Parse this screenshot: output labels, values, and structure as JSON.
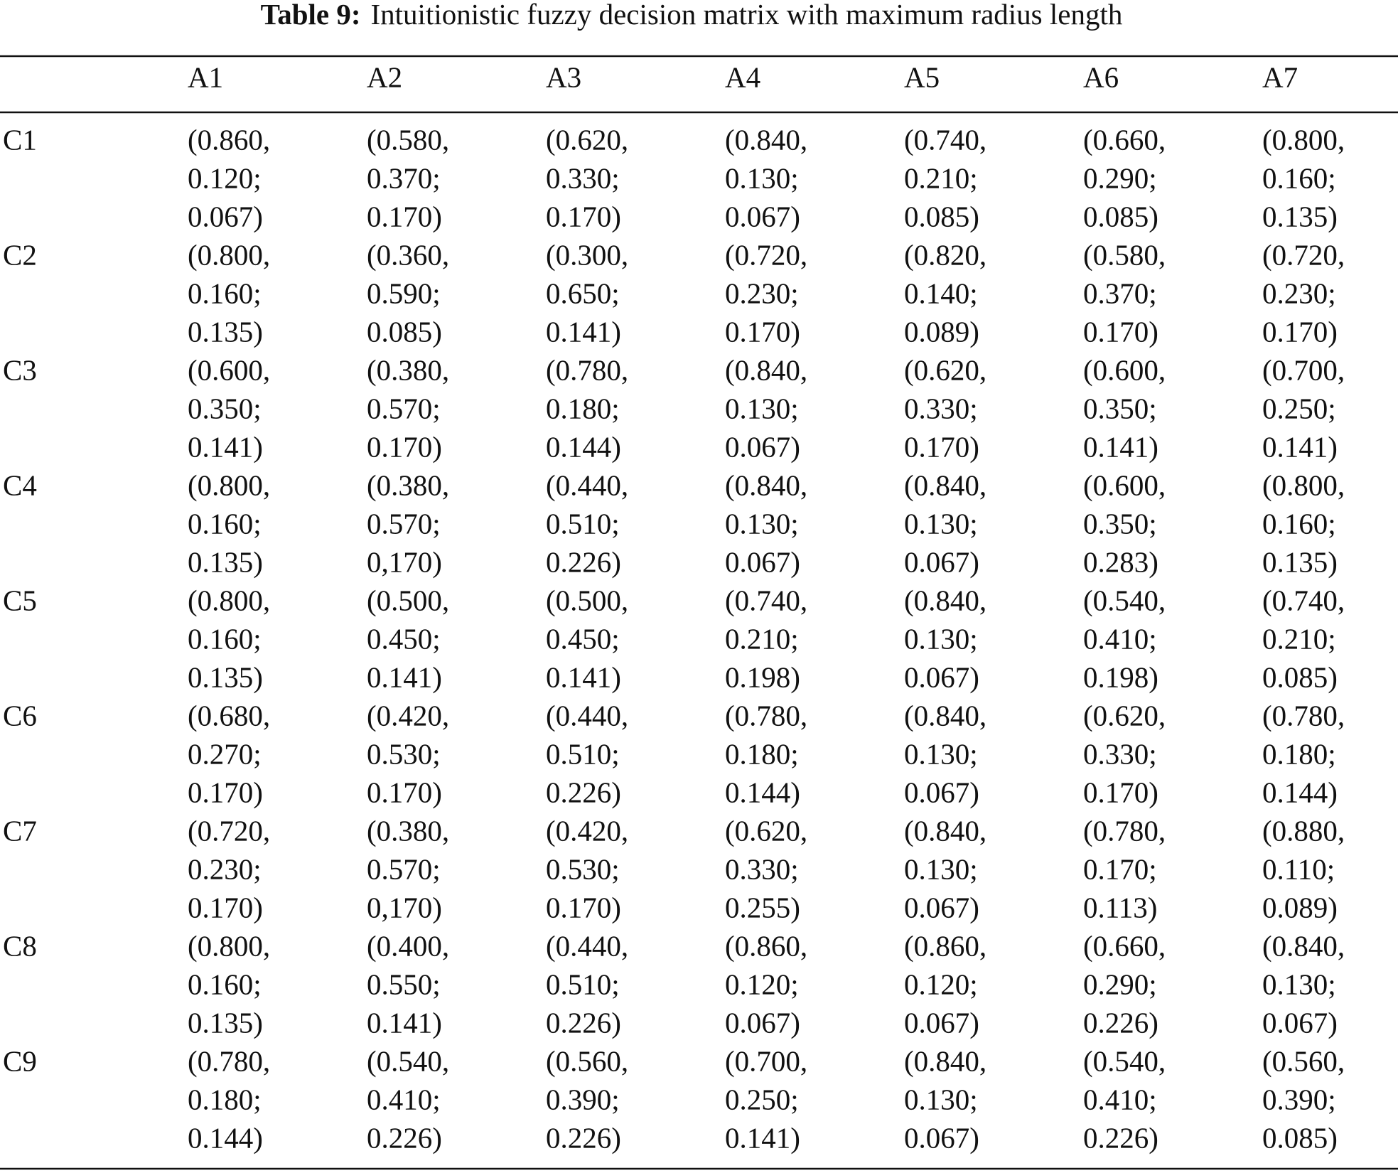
{
  "title": {
    "label": "Table 9:",
    "text": "Intuitionistic fuzzy decision matrix with maximum radius length"
  },
  "table": {
    "columns": [
      "A1",
      "A2",
      "A3",
      "A4",
      "A5",
      "A6",
      "A7"
    ],
    "rows": [
      {
        "label": "C1",
        "cells": [
          [
            "(0.860,",
            "0.120;",
            "0.067)"
          ],
          [
            "(0.580,",
            "0.370;",
            "0.170)"
          ],
          [
            "(0.620,",
            "0.330;",
            "0.170)"
          ],
          [
            "(0.840,",
            "0.130;",
            "0.067)"
          ],
          [
            "(0.740,",
            "0.210;",
            "0.085)"
          ],
          [
            "(0.660,",
            "0.290;",
            "0.085)"
          ],
          [
            "(0.800,",
            "0.160;",
            "0.135)"
          ]
        ]
      },
      {
        "label": "C2",
        "cells": [
          [
            "(0.800,",
            "0.160;",
            "0.135)"
          ],
          [
            "(0.360,",
            "0.590;",
            "0.085)"
          ],
          [
            "(0.300,",
            "0.650;",
            "0.141)"
          ],
          [
            "(0.720,",
            "0.230;",
            "0.170)"
          ],
          [
            "(0.820,",
            "0.140;",
            "0.089)"
          ],
          [
            "(0.580,",
            "0.370;",
            "0.170)"
          ],
          [
            "(0.720,",
            "0.230;",
            "0.170)"
          ]
        ]
      },
      {
        "label": "C3",
        "cells": [
          [
            "(0.600,",
            "0.350;",
            "0.141)"
          ],
          [
            "(0.380,",
            "0.570;",
            "0.170)"
          ],
          [
            "(0.780,",
            "0.180;",
            "0.144)"
          ],
          [
            "(0.840,",
            "0.130;",
            "0.067)"
          ],
          [
            "(0.620,",
            "0.330;",
            "0.170)"
          ],
          [
            "(0.600,",
            "0.350;",
            "0.141)"
          ],
          [
            "(0.700,",
            "0.250;",
            "0.141)"
          ]
        ]
      },
      {
        "label": "C4",
        "cells": [
          [
            "(0.800,",
            "0.160;",
            "0.135)"
          ],
          [
            "(0.380,",
            "0.570;",
            "0,170)"
          ],
          [
            "(0.440,",
            "0.510;",
            "0.226)"
          ],
          [
            "(0.840,",
            "0.130;",
            "0.067)"
          ],
          [
            "(0.840,",
            "0.130;",
            "0.067)"
          ],
          [
            "(0.600,",
            "0.350;",
            "0.283)"
          ],
          [
            "(0.800,",
            "0.160;",
            "0.135)"
          ]
        ]
      },
      {
        "label": "C5",
        "cells": [
          [
            "(0.800,",
            "0.160;",
            "0.135)"
          ],
          [
            "(0.500,",
            "0.450;",
            "0.141)"
          ],
          [
            "(0.500,",
            "0.450;",
            "0.141)"
          ],
          [
            "(0.740,",
            "0.210;",
            "0.198)"
          ],
          [
            "(0.840,",
            "0.130;",
            "0.067)"
          ],
          [
            "(0.540,",
            "0.410;",
            "0.198)"
          ],
          [
            "(0.740,",
            "0.210;",
            "0.085)"
          ]
        ]
      },
      {
        "label": "C6",
        "cells": [
          [
            "(0.680,",
            "0.270;",
            "0.170)"
          ],
          [
            "(0.420,",
            "0.530;",
            "0.170)"
          ],
          [
            "(0.440,",
            "0.510;",
            "0.226)"
          ],
          [
            "(0.780,",
            "0.180;",
            "0.144)"
          ],
          [
            "(0.840,",
            "0.130;",
            "0.067)"
          ],
          [
            "(0.620,",
            "0.330;",
            "0.170)"
          ],
          [
            "(0.780,",
            "0.180;",
            "0.144)"
          ]
        ]
      },
      {
        "label": "C7",
        "cells": [
          [
            "(0.720,",
            "0.230;",
            "0.170)"
          ],
          [
            "(0.380,",
            "0.570;",
            "0,170)"
          ],
          [
            "(0.420,",
            "0.530;",
            "0.170)"
          ],
          [
            "(0.620,",
            "0.330;",
            "0.255)"
          ],
          [
            "(0.840,",
            "0.130;",
            "0.067)"
          ],
          [
            "(0.780,",
            "0.170;",
            "0.113)"
          ],
          [
            "(0.880,",
            "0.110;",
            "0.089)"
          ]
        ]
      },
      {
        "label": "C8",
        "cells": [
          [
            "(0.800,",
            "0.160;",
            "0.135)"
          ],
          [
            "(0.400,",
            "0.550;",
            "0.141)"
          ],
          [
            "(0.440,",
            "0.510;",
            "0.226)"
          ],
          [
            "(0.860,",
            "0.120;",
            "0.067)"
          ],
          [
            "(0.860,",
            "0.120;",
            "0.067)"
          ],
          [
            "(0.660,",
            "0.290;",
            "0.226)"
          ],
          [
            "(0.840,",
            "0.130;",
            "0.067)"
          ]
        ]
      },
      {
        "label": "C9",
        "cells": [
          [
            "(0.780,",
            "0.180;",
            "0.144)"
          ],
          [
            "(0.540,",
            "0.410;",
            "0.226)"
          ],
          [
            "(0.560,",
            "0.390;",
            "0.226)"
          ],
          [
            "(0.700,",
            "0.250;",
            "0.141)"
          ],
          [
            "(0.840,",
            "0.130;",
            "0.067)"
          ],
          [
            "(0.540,",
            "0.410;",
            "0.226)"
          ],
          [
            "(0.560,",
            "0.390;",
            "0.085)"
          ]
        ]
      }
    ]
  }
}
